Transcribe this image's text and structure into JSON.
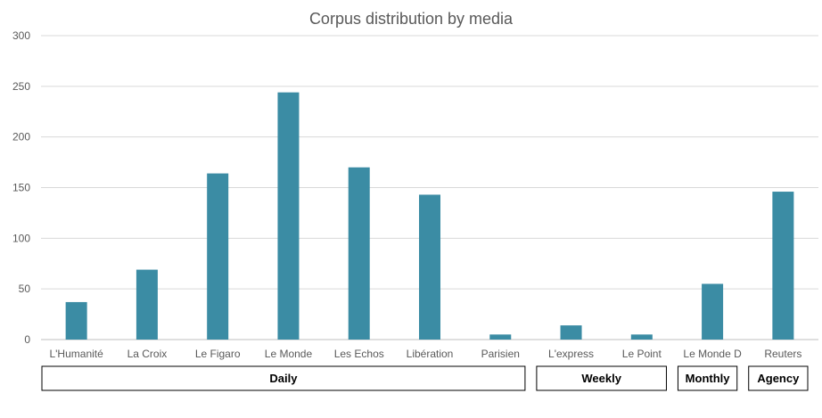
{
  "chart_data": {
    "type": "bar",
    "title": "Corpus distribution by media",
    "categories": [
      "L'Humanité",
      "La Croix",
      "Le Figaro",
      "Le Monde",
      "Les Echos",
      "Libération",
      "Parisien",
      "L'express",
      "Le Point",
      "Le Monde D",
      "Reuters"
    ],
    "values": [
      37,
      69,
      164,
      244,
      170,
      143,
      5,
      14,
      5,
      55,
      146
    ],
    "groups": [
      {
        "label": "Daily",
        "count": 7
      },
      {
        "label": "Weekly",
        "count": 2
      },
      {
        "label": "Monthly",
        "count": 1
      },
      {
        "label": "Agency",
        "count": 1
      }
    ],
    "ylim": [
      0,
      300
    ],
    "yticks": [
      0,
      50,
      100,
      150,
      200,
      250,
      300
    ],
    "grid": true,
    "legend": "none",
    "bar_color": "#3b8ca4"
  }
}
